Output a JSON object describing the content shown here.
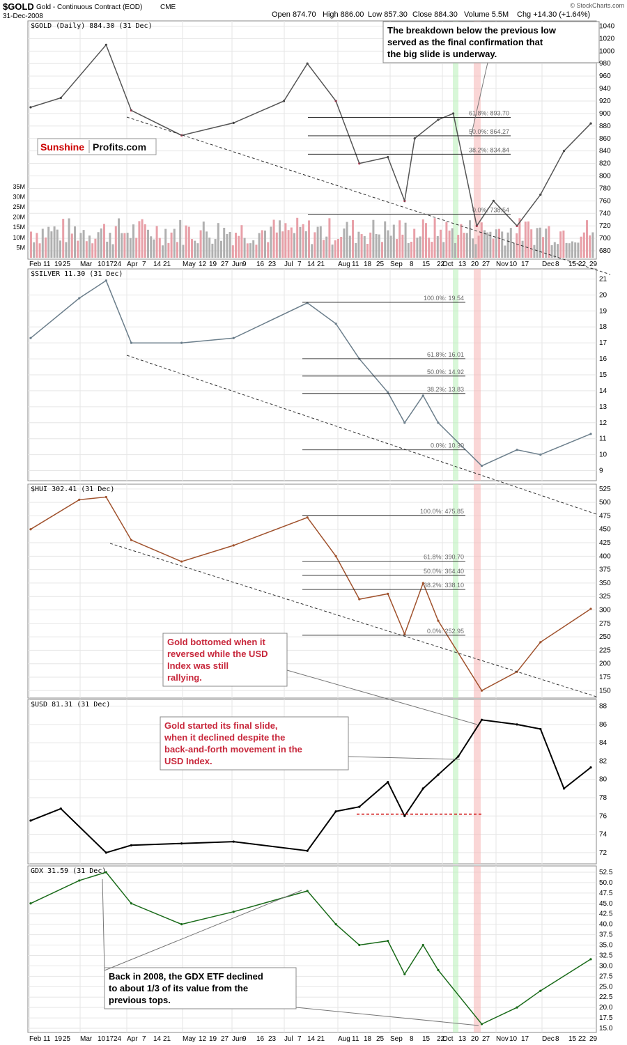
{
  "header": {
    "symbol": "$GOLD",
    "description": "Gold - Continuous Contract (EOD)",
    "exchange": "CME",
    "date": "31-Dec-2008",
    "open": "Open 874.70",
    "high": "High 886.00",
    "low": "Low 857.30",
    "close": "Close 884.30",
    "volume": "Volume 5.5M",
    "change": "Chg +14.30 (+1.64%)",
    "credit": "© StockCharts.com"
  },
  "brand": {
    "part1": "Sunshine",
    "part2": "Profits.com",
    "part1_color": "#cc0000"
  },
  "x_axis": {
    "labels": [
      "Feb",
      "11",
      "19",
      "25",
      "Mar",
      "10",
      "17",
      "24",
      "Apr",
      "7",
      "14",
      "21",
      "May",
      "12",
      "19",
      "27",
      "Jun",
      "9",
      "16",
      "23",
      "Jul",
      "7",
      "14",
      "21",
      "Aug",
      "11",
      "18",
      "25",
      "Sep",
      "8",
      "15",
      "22",
      "Oct",
      "13",
      "20",
      "27",
      "Nov",
      "10",
      "17",
      "Dec",
      "8",
      "15",
      "22",
      "29"
    ]
  },
  "annotations": {
    "gold_top": "The breakdown below the previous low served as the final confirmation that the big slide is underway.",
    "hui_bottom": "Gold bottomed when it reversed while the USD Index was still rallying.",
    "usd_slide": "Gold started its final slide, when it declined despite the back-and-forth movement in the USD Index.",
    "gdx_note": "Back in 2008, the GDX ETF declined to about 1/3 of its value from the previous tops.",
    "red_color": "#c8283c",
    "black_color": "#000000"
  },
  "chart_data": [
    {
      "type": "line",
      "id": "gold",
      "title": "$GOLD (Daily) 884.30 (31 Dec)",
      "ylim": [
        670,
        1045
      ],
      "y_ticks": [
        680,
        700,
        720,
        740,
        760,
        780,
        800,
        820,
        840,
        860,
        880,
        900,
        920,
        940,
        960,
        980,
        1000,
        1020,
        1040
      ],
      "colors": {
        "up": "#333333",
        "down": "#d0103a"
      },
      "x": [
        "2008-02-01",
        "2008-02-19",
        "2008-03-17",
        "2008-04-01",
        "2008-05-01",
        "2008-06-01",
        "2008-07-01",
        "2008-07-15",
        "2008-08-01",
        "2008-08-15",
        "2008-09-01",
        "2008-09-11",
        "2008-09-17",
        "2008-10-01",
        "2008-10-10",
        "2008-10-24",
        "2008-11-03",
        "2008-11-17",
        "2008-12-01",
        "2008-12-15",
        "2008-12-31"
      ],
      "values": [
        910,
        925,
        1010,
        905,
        865,
        885,
        920,
        980,
        920,
        820,
        830,
        760,
        860,
        890,
        900,
        720,
        760,
        720,
        770,
        840,
        884
      ],
      "fib_levels": [
        {
          "label": "61.8%: 893.70",
          "value": 893.7
        },
        {
          "label": "50.0%: 864.27",
          "value": 864.27
        },
        {
          "label": "38.2%: 834.84",
          "value": 834.84
        },
        {
          "label": "0.0%: 738.54",
          "value": 738.54
        }
      ],
      "volume": {
        "y_ticks_labels": [
          "5M",
          "10M",
          "15M",
          "20M",
          "25M",
          "30M",
          "35M"
        ],
        "y_ticks": [
          5,
          10,
          15,
          20,
          25,
          30,
          35
        ],
        "ylim": [
          0,
          37
        ]
      }
    },
    {
      "type": "line",
      "id": "silver",
      "title": "$SILVER 11.30 (31 Dec)",
      "ylim": [
        8.5,
        21.5
      ],
      "y_ticks": [
        9,
        10,
        11,
        12,
        13,
        14,
        15,
        16,
        17,
        18,
        19,
        20,
        21
      ],
      "color": "#6c7f8c",
      "x": [
        "2008-02-01",
        "2008-03-01",
        "2008-03-17",
        "2008-04-01",
        "2008-05-01",
        "2008-06-01",
        "2008-07-15",
        "2008-08-01",
        "2008-08-15",
        "2008-09-01",
        "2008-09-11",
        "2008-09-22",
        "2008-10-01",
        "2008-10-27",
        "2008-11-17",
        "2008-12-01",
        "2008-12-31"
      ],
      "values": [
        17.3,
        19.8,
        20.9,
        17.0,
        17.0,
        17.3,
        19.5,
        18.2,
        16.0,
        13.9,
        12.0,
        13.7,
        12.0,
        9.3,
        10.3,
        10.0,
        11.3
      ],
      "fib_levels": [
        {
          "label": "100.0%: 19.54",
          "value": 19.54
        },
        {
          "label": "61.8%: 16.01",
          "value": 16.01
        },
        {
          "label": "50.0%: 14.92",
          "value": 14.92
        },
        {
          "label": "38.2%: 13.83",
          "value": 13.83
        },
        {
          "label": "0.0%: 10.30",
          "value": 10.3
        }
      ]
    },
    {
      "type": "line",
      "id": "hui",
      "title": "$HUI 302.41 (31 Dec)",
      "ylim": [
        140,
        530
      ],
      "y_ticks": [
        150,
        175,
        200,
        225,
        250,
        275,
        300,
        325,
        350,
        375,
        400,
        425,
        450,
        475,
        500,
        525
      ],
      "color": "#a0522d",
      "x": [
        "2008-02-01",
        "2008-03-01",
        "2008-03-17",
        "2008-04-01",
        "2008-05-01",
        "2008-06-01",
        "2008-07-15",
        "2008-08-01",
        "2008-08-15",
        "2008-09-01",
        "2008-09-11",
        "2008-09-22",
        "2008-10-01",
        "2008-10-27",
        "2008-11-17",
        "2008-12-01",
        "2008-12-31"
      ],
      "values": [
        450,
        505,
        510,
        430,
        390,
        420,
        472,
        400,
        320,
        330,
        255,
        350,
        280,
        150,
        185,
        240,
        302
      ],
      "fib_levels": [
        {
          "label": "100.0%: 475.85",
          "value": 475.85
        },
        {
          "label": "61.8%: 390.70",
          "value": 390.7
        },
        {
          "label": "50.0%: 364.40",
          "value": 364.4
        },
        {
          "label": "38.2%: 338.10",
          "value": 338.1
        },
        {
          "label": "0.0%: 252.95",
          "value": 252.95
        }
      ]
    },
    {
      "type": "line",
      "id": "usd",
      "title": "$USD 81.31 (31 Dec)",
      "ylim": [
        71,
        88.5
      ],
      "y_ticks": [
        72,
        74,
        76,
        78,
        80,
        82,
        84,
        86,
        88
      ],
      "color": "#000000",
      "x": [
        "2008-02-01",
        "2008-02-19",
        "2008-03-17",
        "2008-04-01",
        "2008-05-01",
        "2008-06-01",
        "2008-07-15",
        "2008-08-01",
        "2008-08-15",
        "2008-09-01",
        "2008-09-11",
        "2008-09-22",
        "2008-10-01",
        "2008-10-13",
        "2008-10-27",
        "2008-11-17",
        "2008-12-01",
        "2008-12-15",
        "2008-12-31"
      ],
      "values": [
        75.5,
        76.8,
        72.0,
        72.8,
        73.0,
        73.2,
        72.2,
        76.5,
        77.0,
        79.7,
        76.0,
        79.0,
        80.5,
        82.5,
        86.5,
        86.0,
        85.5,
        79.0,
        81.3
      ],
      "support_line": {
        "value": 76.2,
        "color": "#cc0000"
      }
    },
    {
      "type": "line",
      "id": "gdx",
      "title": "GDX 31.59 (31 Dec)",
      "ylim": [
        14.5,
        53.5
      ],
      "y_ticks": [
        15.0,
        17.5,
        20.0,
        22.5,
        25.0,
        27.5,
        30.0,
        32.5,
        35.0,
        37.5,
        40.0,
        42.5,
        45.0,
        47.5,
        50.0,
        52.5
      ],
      "y_tick_labels": [
        "15.0",
        "17.5",
        "20.0",
        "22.5",
        "25.0",
        "27.5",
        "30.0",
        "32.5",
        "35.0",
        "37.5",
        "40.0",
        "42.5",
        "45.0",
        "47.5",
        "50.0",
        "52.5"
      ],
      "color": "#1a6b1a",
      "x": [
        "2008-02-01",
        "2008-03-01",
        "2008-03-17",
        "2008-04-01",
        "2008-05-01",
        "2008-06-01",
        "2008-07-15",
        "2008-08-01",
        "2008-08-15",
        "2008-09-01",
        "2008-09-11",
        "2008-09-22",
        "2008-10-01",
        "2008-10-27",
        "2008-11-17",
        "2008-12-01",
        "2008-12-31"
      ],
      "values": [
        45,
        50.5,
        52.5,
        45,
        40,
        43,
        48,
        40,
        35,
        36,
        28,
        35,
        29,
        16,
        20,
        24,
        31.6
      ]
    }
  ]
}
